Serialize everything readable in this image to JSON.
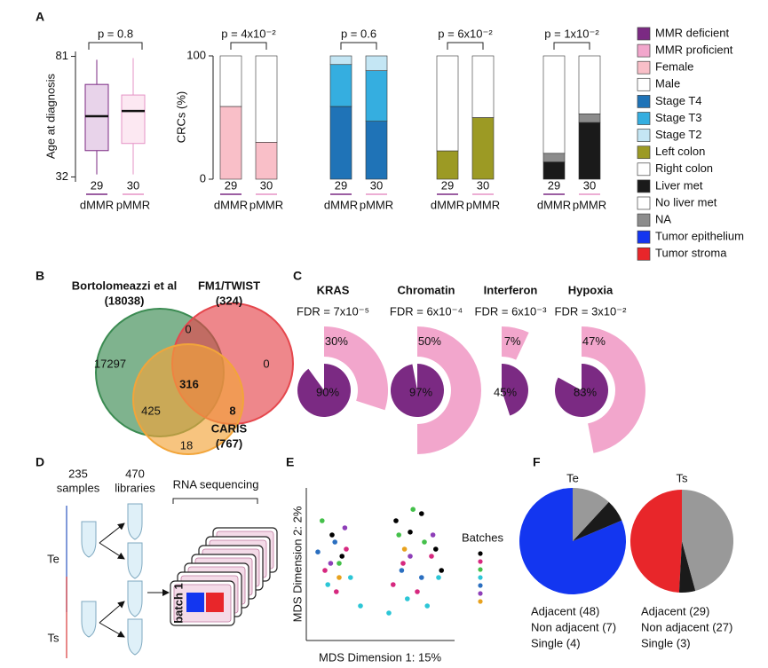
{
  "panel_labels": [
    "A",
    "B",
    "C",
    "D",
    "E",
    "F"
  ],
  "boxplot": {
    "ylabel": "Age at diagnosis",
    "ylim": [
      30,
      83
    ],
    "yticks": [
      32,
      81
    ],
    "p": "p = 0.8",
    "groups": [
      {
        "name": "dMMR",
        "n": 29,
        "color": "#7b2a83",
        "fill": "#e8d3ea",
        "whislo": 33,
        "q1": 42.7,
        "med": 56.7,
        "q3": 69.6,
        "whishi": 79.6
      },
      {
        "name": "pMMR",
        "n": 30,
        "color": "#e593c5",
        "fill": "#fce8f2",
        "whislo": 33,
        "q1": 45.6,
        "med": 58.8,
        "q3": 65.3,
        "whishi": 80.3
      }
    ]
  },
  "stacked": {
    "ylabel": "CRCs (%)",
    "ylim": [
      0,
      100
    ],
    "yticks": [
      0,
      100
    ],
    "charts": [
      {
        "p": "p = 4x10⁻²",
        "categories": [
          "dMMR",
          "pMMR"
        ],
        "n": [
          29,
          30
        ],
        "series": [
          {
            "color": "#f9bfc8",
            "values": [
              59,
              30
            ]
          },
          {
            "color": "#ffffff",
            "values": [
              41,
              70
            ]
          }
        ]
      },
      {
        "p": "p = 0.6",
        "categories": [
          "dMMR",
          "pMMR"
        ],
        "n": [
          29,
          30
        ],
        "series": [
          {
            "color": "#1f73b7",
            "values": [
              59,
              47
            ]
          },
          {
            "color": "#35aee0",
            "values": [
              34,
              41
            ]
          },
          {
            "color": "#c4e6f4",
            "values": [
              7,
              12
            ]
          }
        ]
      },
      {
        "p": "p = 6x10⁻²",
        "categories": [
          "dMMR",
          "pMMR"
        ],
        "n": [
          29,
          30
        ],
        "series": [
          {
            "color": "#9c9a24",
            "values": [
              23,
              50
            ]
          },
          {
            "color": "#ffffff",
            "values": [
              77,
              50
            ]
          }
        ]
      },
      {
        "p": "p = 1x10⁻²",
        "categories": [
          "dMMR",
          "pMMR"
        ],
        "n": [
          29,
          30
        ],
        "series": [
          {
            "color": "#1a1a1a",
            "values": [
              14,
              46
            ]
          },
          {
            "color": "#8c8c8c",
            "values": [
              7,
              7
            ]
          },
          {
            "color": "#ffffff",
            "values": [
              79,
              47
            ]
          }
        ]
      }
    ]
  },
  "legend": [
    {
      "name": "MMR deficient",
      "color": "#7b2a83"
    },
    {
      "name": "MMR proficient",
      "color": "#f2a6cc"
    },
    {
      "name": "Female",
      "color": "#f9bfc8"
    },
    {
      "name": "Male",
      "color": "#ffffff"
    },
    {
      "name": "Stage T4",
      "color": "#1f73b7"
    },
    {
      "name": "Stage T3",
      "color": "#35aee0"
    },
    {
      "name": "Stage T2",
      "color": "#c4e6f4"
    },
    {
      "name": "Left colon",
      "color": "#9c9a24"
    },
    {
      "name": "Right colon",
      "color": "#ffffff"
    },
    {
      "name": "Liver met",
      "color": "#1a1a1a"
    },
    {
      "name": "No liver met",
      "color": "#ffffff"
    },
    {
      "name": "NA",
      "color": "#8c8c8c"
    },
    {
      "name": "Tumor epithelium",
      "color": "#1336f0"
    },
    {
      "name": "Tumor stroma",
      "color": "#e8262a"
    }
  ],
  "venn": {
    "sets": [
      {
        "name": "Bortolomeazzi et al",
        "size": "(18038)",
        "color": "#3b8b52",
        "text_color": "#1f6b33"
      },
      {
        "name": "FM1/TWIST",
        "size": "(324)",
        "color": "#e5474d",
        "text_color": "#d6212a"
      },
      {
        "name": "CARIS",
        "size": "(767)",
        "color": "#f2a53a",
        "text_color": "#e8961e"
      }
    ],
    "regions": [
      17297,
      0,
      0,
      316,
      425,
      8,
      18
    ]
  },
  "pathways": {
    "inner_color": "#7b2a83",
    "outer_color": "#f2a6cc",
    "items": [
      {
        "name": "KRAS",
        "fdr": "FDR = 7x10⁻⁵",
        "inner": 90,
        "inner_label": "90%",
        "outer": 30,
        "outer_label": "30%"
      },
      {
        "name": "Chromatin",
        "fdr": "FDR = 6x10⁻⁴",
        "inner": 97,
        "inner_label": "97%",
        "outer": 50,
        "outer_label": "50%"
      },
      {
        "name": "Interferon",
        "fdr": "FDR = 6x10⁻³",
        "inner": 45,
        "inner_label": "45%",
        "outer": 7,
        "outer_label": "7%"
      },
      {
        "name": "Hypoxia",
        "fdr": "FDR = 3x10⁻²",
        "inner": 83,
        "inner_label": "83%",
        "outer": 47,
        "outer_label": "47%"
      }
    ]
  },
  "design": {
    "samples_n": "235",
    "samples": "samples",
    "libraries_n": "470",
    "libraries": "libraries",
    "sequencing": "RNA sequencing",
    "te": "Te",
    "ts": "Ts",
    "batch": "batch 1"
  },
  "mds": {
    "type": "scatter",
    "xlabel": "MDS Dimension 1: 15%",
    "ylabel": "MDS Dimension 2: 2%",
    "legend_title": "Batches",
    "xlim": [
      0,
      100
    ],
    "ylim": [
      0,
      100
    ],
    "series": [
      {
        "color": "#000000",
        "x": [
          15,
          22,
          60,
          70,
          78,
          88,
          92
        ],
        "y": [
          70,
          55,
          80,
          72,
          85,
          60,
          45
        ]
      },
      {
        "color": "#d6287f",
        "x": [
          10,
          25,
          18,
          58,
          65,
          75,
          85
        ],
        "y": [
          45,
          60,
          30,
          35,
          50,
          30,
          55
        ]
      },
      {
        "color": "#44c04a",
        "x": [
          8,
          20,
          62,
          72,
          80
        ],
        "y": [
          80,
          50,
          70,
          88,
          65
        ]
      },
      {
        "color": "#2cc6d6",
        "x": [
          12,
          28,
          35,
          55,
          68,
          82,
          90
        ],
        "y": [
          35,
          40,
          20,
          15,
          25,
          20,
          40
        ]
      },
      {
        "color": "#2b6fc0",
        "x": [
          5,
          17,
          64,
          78
        ],
        "y": [
          58,
          65,
          45,
          40
        ]
      },
      {
        "color": "#8e3fb8",
        "x": [
          14,
          24,
          70,
          86
        ],
        "y": [
          50,
          75,
          55,
          70
        ]
      },
      {
        "color": "#e8a21e",
        "x": [
          20,
          66
        ],
        "y": [
          40,
          60
        ]
      }
    ]
  },
  "pies": [
    {
      "type": "pie",
      "title": "Te",
      "title_color": "#1336f0",
      "values": [
        48,
        7,
        4
      ],
      "value_labels": [
        "Adjacent (48)",
        "Non adjacent (7)",
        "Single (4)"
      ],
      "colors": [
        "#1336f0",
        "#999999",
        "#1a1a1a"
      ],
      "label_colors": [
        "#1336f0",
        "#888888",
        "#111111"
      ]
    },
    {
      "type": "pie",
      "title": "Ts",
      "title_color": "#e8262a",
      "values": [
        29,
        27,
        3
      ],
      "value_labels": [
        "Adjacent (29)",
        "Non adjacent (27)",
        "Single (3)"
      ],
      "colors": [
        "#e8262a",
        "#999999",
        "#1a1a1a"
      ],
      "label_colors": [
        "#e8262a",
        "#888888",
        "#111111"
      ]
    }
  ]
}
